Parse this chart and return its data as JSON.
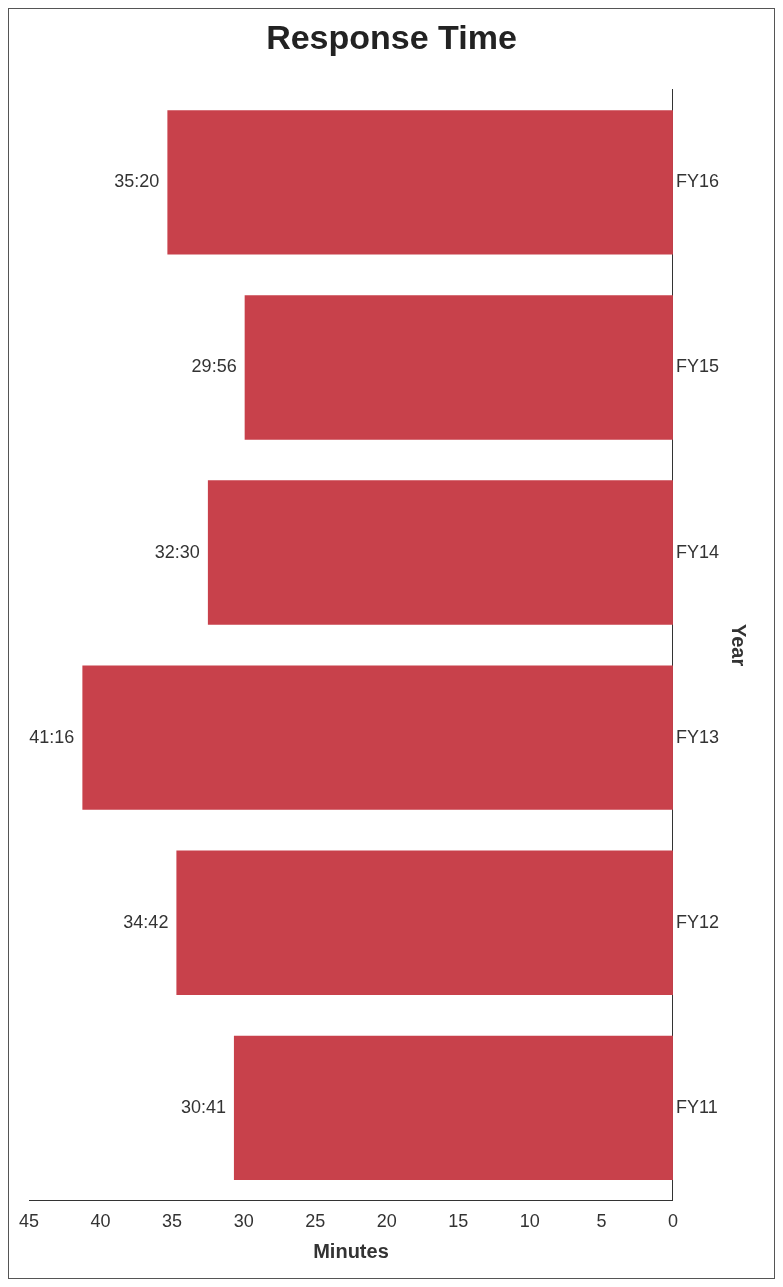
{
  "chart_data": {
    "type": "bar",
    "orientation": "horizontal",
    "title": "Response Time",
    "xlabel": "Minutes",
    "ylabel": "Year",
    "categories": [
      "FY16",
      "FY15",
      "FY14",
      "FY13",
      "FY12",
      "FY11"
    ],
    "values": [
      35.33,
      29.93,
      32.5,
      41.27,
      34.7,
      30.68
    ],
    "value_labels": [
      "35:20",
      "29:56",
      "32:30",
      "41:16",
      "34:42",
      "30:41"
    ],
    "color": "#c8414b",
    "xlim": [
      45,
      0
    ],
    "xticks": [
      45,
      40,
      35,
      30,
      25,
      20,
      15,
      10,
      5,
      0
    ],
    "grid": false,
    "legend": false
  }
}
